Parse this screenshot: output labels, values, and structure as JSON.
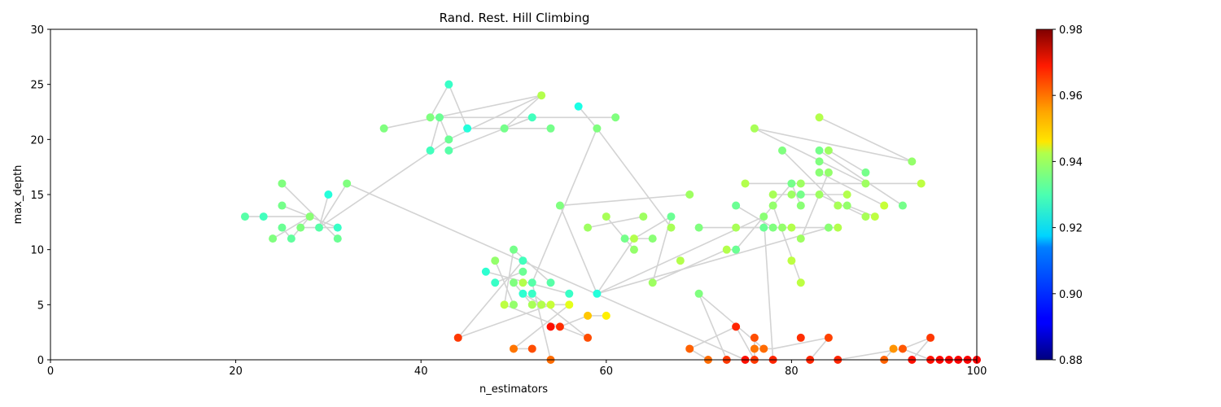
{
  "chart_data": {
    "type": "scatter",
    "title": "Rand. Rest. Hill Climbing",
    "xlabel": "n_estimators",
    "ylabel": "max_depth",
    "xlim": [
      0,
      100
    ],
    "ylim": [
      0,
      30
    ],
    "xticks": [
      0,
      20,
      40,
      60,
      80,
      100
    ],
    "yticks": [
      0,
      5,
      10,
      15,
      20,
      25,
      30
    ],
    "grid": false,
    "path_color": "#d3d3d3",
    "colorbar": {
      "colormap": "jet",
      "range": [
        0.88,
        0.98
      ],
      "ticks": [
        0.88,
        0.9,
        0.92,
        0.94,
        0.96,
        0.98
      ],
      "tick_labels": [
        "0.88",
        "0.90",
        "0.92",
        "0.94",
        "0.96",
        "0.98"
      ]
    },
    "points": [
      [
        21,
        13,
        0.926
      ],
      [
        23,
        13,
        0.924
      ],
      [
        24,
        11,
        0.93
      ],
      [
        25,
        12,
        0.928
      ],
      [
        25,
        14,
        0.929
      ],
      [
        25,
        16,
        0.93
      ],
      [
        26,
        11,
        0.927
      ],
      [
        27,
        12,
        0.93
      ],
      [
        28,
        13,
        0.931
      ],
      [
        29,
        12,
        0.926
      ],
      [
        30,
        15,
        0.921
      ],
      [
        31,
        12,
        0.923
      ],
      [
        31,
        11,
        0.928
      ],
      [
        32,
        16,
        0.93
      ],
      [
        36,
        21,
        0.93
      ],
      [
        41,
        22,
        0.93
      ],
      [
        41,
        19,
        0.924
      ],
      [
        42,
        22,
        0.928
      ],
      [
        43,
        25,
        0.923
      ],
      [
        43,
        20,
        0.928
      ],
      [
        43,
        19,
        0.926
      ],
      [
        45,
        21,
        0.921
      ],
      [
        49,
        21,
        0.929
      ],
      [
        52,
        22,
        0.924
      ],
      [
        53,
        24,
        0.935
      ],
      [
        54,
        21,
        0.929
      ],
      [
        57,
        23,
        0.92
      ],
      [
        59,
        21,
        0.93
      ],
      [
        61,
        22,
        0.93
      ],
      [
        44,
        2,
        0.962
      ],
      [
        47,
        8,
        0.922
      ],
      [
        48,
        9,
        0.932
      ],
      [
        48,
        7,
        0.923
      ],
      [
        49,
        5,
        0.936
      ],
      [
        50,
        10,
        0.929
      ],
      [
        50,
        7,
        0.93
      ],
      [
        50,
        5,
        0.932
      ],
      [
        50,
        1,
        0.956
      ],
      [
        51,
        9,
        0.924
      ],
      [
        51,
        8,
        0.928
      ],
      [
        51,
        7,
        0.935
      ],
      [
        51,
        6,
        0.922
      ],
      [
        52,
        7,
        0.926
      ],
      [
        52,
        6,
        0.923
      ],
      [
        52,
        5,
        0.934
      ],
      [
        52,
        1,
        0.96
      ],
      [
        53,
        5,
        0.935
      ],
      [
        54,
        7,
        0.926
      ],
      [
        54,
        5,
        0.937
      ],
      [
        54,
        3,
        0.966
      ],
      [
        54,
        0,
        0.957
      ],
      [
        55,
        3,
        0.963
      ],
      [
        56,
        6,
        0.923
      ],
      [
        56,
        5,
        0.94
      ],
      [
        58,
        4,
        0.948
      ],
      [
        58,
        2,
        0.96
      ],
      [
        59,
        6,
        0.921
      ],
      [
        60,
        4,
        0.944
      ],
      [
        55,
        14,
        0.93
      ],
      [
        58,
        12,
        0.933
      ],
      [
        60,
        13,
        0.934
      ],
      [
        62,
        11,
        0.929
      ],
      [
        63,
        11,
        0.935
      ],
      [
        63,
        10,
        0.932
      ],
      [
        64,
        13,
        0.933
      ],
      [
        65,
        11,
        0.931
      ],
      [
        65,
        7,
        0.933
      ],
      [
        67,
        13,
        0.928
      ],
      [
        67,
        12,
        0.934
      ],
      [
        68,
        9,
        0.935
      ],
      [
        69,
        15,
        0.933
      ],
      [
        70,
        12,
        0.93
      ],
      [
        70,
        6,
        0.93
      ],
      [
        69,
        1,
        0.958
      ],
      [
        71,
        0,
        0.957
      ],
      [
        73,
        10,
        0.935
      ],
      [
        73,
        0,
        0.962
      ],
      [
        74,
        14,
        0.928
      ],
      [
        74,
        12,
        0.934
      ],
      [
        74,
        10,
        0.928
      ],
      [
        74,
        3,
        0.964
      ],
      [
        75,
        16,
        0.935
      ],
      [
        75,
        0,
        0.966
      ],
      [
        76,
        21,
        0.934
      ],
      [
        76,
        2,
        0.96
      ],
      [
        76,
        1,
        0.956
      ],
      [
        76,
        0,
        0.962
      ],
      [
        77,
        13,
        0.931
      ],
      [
        77,
        12,
        0.928
      ],
      [
        77,
        1,
        0.957
      ],
      [
        78,
        15,
        0.934
      ],
      [
        78,
        14,
        0.932
      ],
      [
        78,
        12,
        0.93
      ],
      [
        78,
        0,
        0.964
      ],
      [
        79,
        19,
        0.93
      ],
      [
        79,
        12,
        0.932
      ],
      [
        80,
        16,
        0.929
      ],
      [
        80,
        15,
        0.933
      ],
      [
        80,
        12,
        0.935
      ],
      [
        80,
        9,
        0.936
      ],
      [
        81,
        16,
        0.933
      ],
      [
        81,
        15,
        0.929
      ],
      [
        81,
        14,
        0.931
      ],
      [
        81,
        11,
        0.933
      ],
      [
        81,
        7,
        0.936
      ],
      [
        81,
        2,
        0.963
      ],
      [
        82,
        0,
        0.964
      ],
      [
        83,
        22,
        0.935
      ],
      [
        83,
        19,
        0.929
      ],
      [
        83,
        18,
        0.93
      ],
      [
        83,
        17,
        0.931
      ],
      [
        83,
        15,
        0.933
      ],
      [
        84,
        19,
        0.933
      ],
      [
        84,
        17,
        0.932
      ],
      [
        84,
        12,
        0.931
      ],
      [
        84,
        2,
        0.961
      ],
      [
        85,
        14,
        0.934
      ],
      [
        85,
        12,
        0.935
      ],
      [
        85,
        0,
        0.964
      ],
      [
        86,
        15,
        0.935
      ],
      [
        86,
        14,
        0.932
      ],
      [
        88,
        17,
        0.929
      ],
      [
        88,
        16,
        0.933
      ],
      [
        88,
        13,
        0.934
      ],
      [
        89,
        13,
        0.936
      ],
      [
        90,
        14,
        0.937
      ],
      [
        90,
        0,
        0.958
      ],
      [
        91,
        1,
        0.953
      ],
      [
        92,
        14,
        0.929
      ],
      [
        92,
        1,
        0.959
      ],
      [
        93,
        18,
        0.932
      ],
      [
        93,
        0,
        0.966
      ],
      [
        94,
        16,
        0.936
      ],
      [
        95,
        2,
        0.962
      ],
      [
        95,
        0,
        0.966
      ],
      [
        96,
        0,
        0.967
      ],
      [
        97,
        0,
        0.967
      ],
      [
        98,
        0,
        0.968
      ],
      [
        99,
        0,
        0.968
      ],
      [
        100,
        0,
        0.968
      ]
    ],
    "path_segments": [
      [
        [
          21,
          13
        ],
        [
          23,
          13
        ]
      ],
      [
        [
          23,
          13
        ],
        [
          28,
          13
        ]
      ],
      [
        [
          28,
          13
        ],
        [
          31,
          12
        ]
      ],
      [
        [
          31,
          12
        ],
        [
          29,
          12
        ]
      ],
      [
        [
          29,
          12
        ],
        [
          30,
          15
        ]
      ],
      [
        [
          29,
          12
        ],
        [
          32,
          16
        ]
      ],
      [
        [
          25,
          16
        ],
        [
          31,
          11
        ]
      ],
      [
        [
          25,
          14
        ],
        [
          28,
          13
        ]
      ],
      [
        [
          28,
          13
        ],
        [
          26,
          11
        ]
      ],
      [
        [
          26,
          11
        ],
        [
          25,
          12
        ]
      ],
      [
        [
          24,
          11
        ],
        [
          28,
          13
        ]
      ],
      [
        [
          27,
          12
        ],
        [
          29,
          12
        ]
      ],
      [
        [
          29,
          12
        ],
        [
          43,
          20
        ]
      ],
      [
        [
          36,
          21
        ],
        [
          53,
          24
        ]
      ],
      [
        [
          53,
          24
        ],
        [
          43,
          20
        ]
      ],
      [
        [
          43,
          20
        ],
        [
          42,
          22
        ]
      ],
      [
        [
          42,
          22
        ],
        [
          41,
          19
        ]
      ],
      [
        [
          41,
          22
        ],
        [
          43,
          25
        ]
      ],
      [
        [
          43,
          25
        ],
        [
          45,
          21
        ]
      ],
      [
        [
          45,
          21
        ],
        [
          54,
          21
        ]
      ],
      [
        [
          43,
          19
        ],
        [
          52,
          22
        ]
      ],
      [
        [
          52,
          22
        ],
        [
          49,
          21
        ]
      ],
      [
        [
          49,
          21
        ],
        [
          53,
          24
        ]
      ],
      [
        [
          42,
          22
        ],
        [
          61,
          22
        ]
      ],
      [
        [
          57,
          23
        ],
        [
          59,
          21
        ]
      ],
      [
        [
          59,
          21
        ],
        [
          67,
          12
        ]
      ],
      [
        [
          59,
          21
        ],
        [
          52,
          7
        ]
      ],
      [
        [
          32,
          16
        ],
        [
          75,
          0
        ]
      ],
      [
        [
          44,
          2
        ],
        [
          51,
          9
        ]
      ],
      [
        [
          44,
          2
        ],
        [
          54,
          5
        ]
      ],
      [
        [
          47,
          8
        ],
        [
          56,
          6
        ]
      ],
      [
        [
          48,
          9
        ],
        [
          50,
          5
        ]
      ],
      [
        [
          48,
          7
        ],
        [
          51,
          8
        ]
      ],
      [
        [
          50,
          10
        ],
        [
          54,
          7
        ]
      ],
      [
        [
          50,
          10
        ],
        [
          49,
          5
        ]
      ],
      [
        [
          49,
          5
        ],
        [
          58,
          2
        ]
      ],
      [
        [
          50,
          7
        ],
        [
          52,
          5
        ]
      ],
      [
        [
          52,
          5
        ],
        [
          56,
          5
        ]
      ],
      [
        [
          56,
          5
        ],
        [
          50,
          1
        ]
      ],
      [
        [
          52,
          1
        ],
        [
          50,
          1
        ]
      ],
      [
        [
          54,
          0
        ],
        [
          52,
          7
        ]
      ],
      [
        [
          54,
          3
        ],
        [
          55,
          3
        ]
      ],
      [
        [
          55,
          3
        ],
        [
          58,
          4
        ]
      ],
      [
        [
          58,
          4
        ],
        [
          60,
          4
        ]
      ],
      [
        [
          52,
          6
        ],
        [
          58,
          2
        ]
      ],
      [
        [
          51,
          6
        ],
        [
          53,
          5
        ]
      ],
      [
        [
          55,
          14
        ],
        [
          69,
          15
        ]
      ],
      [
        [
          55,
          14
        ],
        [
          59,
          6
        ]
      ],
      [
        [
          59,
          6
        ],
        [
          63,
          11
        ]
      ],
      [
        [
          58,
          12
        ],
        [
          64,
          13
        ]
      ],
      [
        [
          60,
          13
        ],
        [
          63,
          10
        ]
      ],
      [
        [
          62,
          11
        ],
        [
          65,
          11
        ]
      ],
      [
        [
          63,
          11
        ],
        [
          67,
          13
        ]
      ],
      [
        [
          67,
          13
        ],
        [
          65,
          7
        ]
      ],
      [
        [
          65,
          7
        ],
        [
          73,
          10
        ]
      ],
      [
        [
          59,
          6
        ],
        [
          84,
          12
        ]
      ],
      [
        [
          59,
          6
        ],
        [
          77,
          13
        ]
      ],
      [
        [
          70,
          12
        ],
        [
          81,
          12
        ]
      ],
      [
        [
          73,
          10
        ],
        [
          74,
          10
        ]
      ],
      [
        [
          74,
          10
        ],
        [
          80,
          16
        ]
      ],
      [
        [
          70,
          6
        ],
        [
          73,
          0
        ]
      ],
      [
        [
          70,
          6
        ],
        [
          77,
          1
        ]
      ],
      [
        [
          69,
          1
        ],
        [
          74,
          3
        ]
      ],
      [
        [
          74,
          3
        ],
        [
          76,
          0
        ]
      ],
      [
        [
          69,
          1
        ],
        [
          71,
          0
        ]
      ],
      [
        [
          76,
          2
        ],
        [
          76,
          0
        ]
      ],
      [
        [
          76,
          1
        ],
        [
          78,
          1
        ]
      ],
      [
        [
          78,
          1
        ],
        [
          84,
          2
        ]
      ],
      [
        [
          74,
          14
        ],
        [
          78,
          12
        ]
      ],
      [
        [
          74,
          12
        ],
        [
          85,
          12
        ]
      ],
      [
        [
          75,
          16
        ],
        [
          94,
          16
        ]
      ],
      [
        [
          76,
          21
        ],
        [
          93,
          18
        ]
      ],
      [
        [
          76,
          21
        ],
        [
          88,
          16
        ]
      ],
      [
        [
          79,
          19
        ],
        [
          85,
          14
        ]
      ],
      [
        [
          78,
          15
        ],
        [
          81,
          15
        ]
      ],
      [
        [
          81,
          15
        ],
        [
          86,
          15
        ]
      ],
      [
        [
          77,
          13
        ],
        [
          78,
          0
        ]
      ],
      [
        [
          78,
          14
        ],
        [
          81,
          7
        ]
      ],
      [
        [
          80,
          16
        ],
        [
          81,
          14
        ]
      ],
      [
        [
          83,
          22
        ],
        [
          93,
          18
        ]
      ],
      [
        [
          83,
          19
        ],
        [
          92,
          14
        ]
      ],
      [
        [
          84,
          19
        ],
        [
          88,
          17
        ]
      ],
      [
        [
          83,
          17
        ],
        [
          90,
          14
        ]
      ],
      [
        [
          83,
          15
        ],
        [
          88,
          13
        ]
      ],
      [
        [
          81,
          11
        ],
        [
          84,
          17
        ]
      ],
      [
        [
          86,
          14
        ],
        [
          89,
          13
        ]
      ],
      [
        [
          82,
          0
        ],
        [
          84,
          2
        ]
      ],
      [
        [
          85,
          0
        ],
        [
          92,
          1
        ]
      ],
      [
        [
          90,
          0
        ],
        [
          91,
          1
        ]
      ],
      [
        [
          92,
          1
        ],
        [
          95,
          2
        ]
      ],
      [
        [
          93,
          0
        ],
        [
          95,
          2
        ]
      ],
      [
        [
          92,
          1
        ],
        [
          95,
          0
        ]
      ],
      [
        [
          95,
          0
        ],
        [
          100,
          0
        ]
      ]
    ]
  }
}
